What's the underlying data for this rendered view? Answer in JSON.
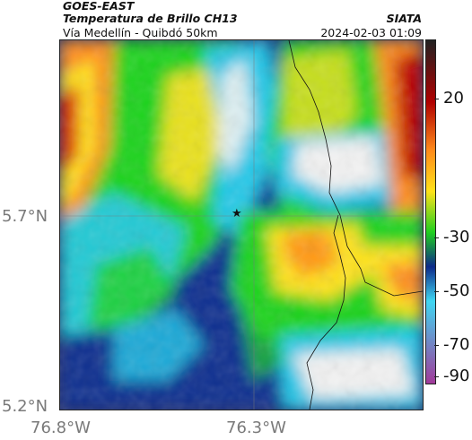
{
  "header": {
    "satellite": "GOES-EAST",
    "product": "Temperatura de Brillo CH13",
    "region": "Vía Medellín - Quibdó 50km",
    "agency": "SIATA",
    "timestamp": "2024-02-03 01:09"
  },
  "axes": {
    "lat_labels": [
      "5.7°N",
      "5.2°N"
    ],
    "lon_labels": [
      "76.8°W",
      "76.3°W"
    ]
  },
  "colorbar": {
    "labels": [
      "20",
      "-30",
      "-50",
      "-70",
      "-90"
    ],
    "colors": [
      "#222222",
      "#b00000",
      "#ff8a1a",
      "#ffe21a",
      "#1fcf1f",
      "#0d2a8a",
      "#3fd6f2",
      "#a23a9a"
    ]
  },
  "marker": {
    "icon": "star-icon"
  },
  "colors": {
    "cold_cloud": "#f2f2f2",
    "deep_blue": "#0a2d8f",
    "cyan": "#21c8e8",
    "green": "#1ed31e",
    "yellow": "#ffe21a",
    "orange": "#ff8c1a",
    "red": "#b30000"
  }
}
